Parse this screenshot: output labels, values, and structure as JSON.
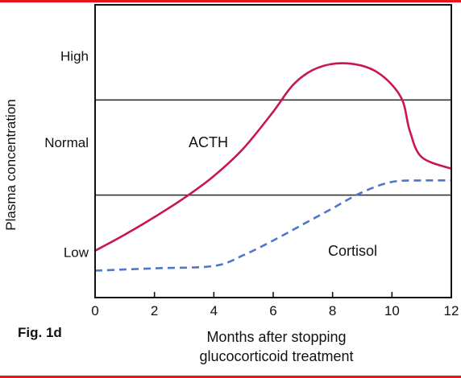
{
  "figure": {
    "label": "Fig. 1d",
    "frame_color": "#e8141c"
  },
  "chart_data": {
    "type": "line",
    "xlabel": [
      "Months after stopping",
      "glucocorticoid treatment"
    ],
    "ylabel": "Plasma concentration",
    "xlim": [
      0,
      12
    ],
    "ylim": [
      0,
      10
    ],
    "x_ticks": [
      0,
      2,
      4,
      6,
      8,
      10,
      12
    ],
    "y_category_labels": [
      {
        "label": "High",
        "value": 8.25
      },
      {
        "label": "Normal",
        "value": 5.3
      },
      {
        "label": "Low",
        "value": 1.55
      }
    ],
    "reference_lines": [
      {
        "name": "upper normal limit",
        "y": 6.75
      },
      {
        "name": "lower normal limit",
        "y": 3.5
      }
    ],
    "series": [
      {
        "name": "ACTH",
        "color": "#c8174a",
        "style": "solid",
        "points": [
          [
            0,
            1.6
          ],
          [
            1,
            2.15
          ],
          [
            2,
            2.75
          ],
          [
            3,
            3.4
          ],
          [
            4,
            4.15
          ],
          [
            5,
            5.1
          ],
          [
            6,
            6.35
          ],
          [
            6.7,
            7.3
          ],
          [
            7.5,
            7.85
          ],
          [
            8.5,
            8.0
          ],
          [
            9.5,
            7.7
          ],
          [
            10.3,
            6.85
          ],
          [
            10.6,
            5.7
          ],
          [
            11,
            4.8
          ],
          [
            12,
            4.4
          ]
        ]
      },
      {
        "name": "Cortisol",
        "color": "#4f76c9",
        "style": "dashed",
        "points": [
          [
            0,
            0.92
          ],
          [
            2,
            1.0
          ],
          [
            4,
            1.08
          ],
          [
            5,
            1.45
          ],
          [
            6,
            1.95
          ],
          [
            7,
            2.5
          ],
          [
            8,
            3.05
          ],
          [
            9,
            3.6
          ],
          [
            10,
            3.95
          ],
          [
            11,
            4.0
          ],
          [
            12,
            4.0
          ]
        ]
      }
    ]
  }
}
